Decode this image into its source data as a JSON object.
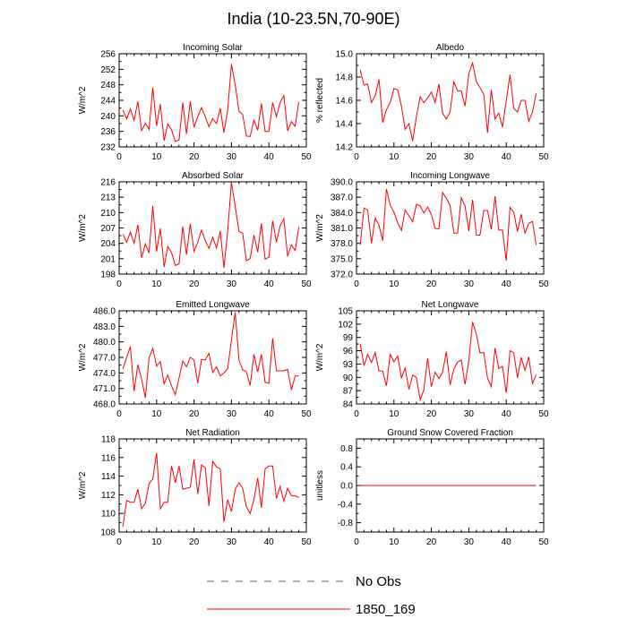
{
  "title": "India (10-23.5N,70-90E)",
  "colors": {
    "series": "#ff0000",
    "obs": "#5a5aa8",
    "axis": "#000000"
  },
  "legend": [
    {
      "label": "No Obs",
      "style": "dashed",
      "color": "#5a5aa8"
    },
    {
      "label": "1850_169",
      "style": "solid",
      "color": "#ff0000"
    }
  ],
  "chart_data": [
    {
      "type": "line",
      "title": "Incoming Solar",
      "ylabel": "W/m^2",
      "xlim": [
        0,
        50
      ],
      "xticks": [
        0,
        10,
        20,
        30,
        40,
        50
      ],
      "xtick_labels": [
        "0",
        "10",
        "20",
        "30",
        "40",
        "50"
      ],
      "ylim": [
        232,
        256
      ],
      "yticks": [
        232,
        236,
        240,
        244,
        248,
        252,
        256
      ],
      "ytick_labels": [
        "232",
        "236",
        "240",
        "244",
        "248",
        "252",
        "256"
      ],
      "series": [
        {
          "name": "1850_169",
          "x": [
            1,
            2,
            3,
            4,
            5,
            6,
            7,
            8,
            9,
            10,
            11,
            12,
            13,
            14,
            15,
            16,
            17,
            18,
            19,
            20,
            21,
            22,
            23,
            24,
            25,
            26,
            27,
            28,
            29,
            30,
            31,
            32,
            33,
            34,
            35,
            36,
            37,
            38,
            39,
            40,
            41,
            42,
            43,
            44,
            45,
            46,
            47,
            48
          ],
          "values": [
            241.5,
            239.2,
            241.8,
            238.8,
            243.7,
            236.2,
            238.1,
            236.5,
            247.2,
            237.4,
            243.0,
            233.6,
            237.9,
            236.4,
            233.4,
            233.8,
            243.4,
            235.4,
            243.7,
            237.1,
            239.8,
            242.1,
            239.8,
            237.2,
            239.3,
            238.0,
            242.0,
            235.7,
            241.5,
            253.3,
            248.0,
            241.2,
            240.3,
            234.8,
            234.7,
            238.9,
            236.3,
            243.2,
            236.0,
            236.0,
            243.4,
            239.8,
            243.4,
            245.2,
            236.1,
            238.5,
            237.3,
            243.6
          ]
        }
      ]
    },
    {
      "type": "line",
      "title": "Albedo",
      "ylabel": "% reflected",
      "xlim": [
        0,
        50
      ],
      "xticks": [
        0,
        10,
        20,
        30,
        40,
        50
      ],
      "xtick_labels": [
        "0",
        "10",
        "20",
        "30",
        "40",
        "50"
      ],
      "ylim": [
        14.2,
        15.0
      ],
      "yticks": [
        14.2,
        14.4,
        14.6,
        14.8,
        15.0
      ],
      "ytick_labels": [
        "14.2",
        "14.4",
        "14.6",
        "14.8",
        "15.0"
      ],
      "series": [
        {
          "name": "1850_169",
          "x": [
            1,
            2,
            3,
            4,
            5,
            6,
            7,
            8,
            9,
            10,
            11,
            12,
            13,
            14,
            15,
            16,
            17,
            18,
            19,
            20,
            21,
            22,
            23,
            24,
            25,
            26,
            27,
            28,
            29,
            30,
            31,
            32,
            33,
            34,
            35,
            36,
            37,
            38,
            39,
            40,
            41,
            42,
            43,
            44,
            45,
            46,
            47,
            48
          ],
          "values": [
            14.86,
            14.73,
            14.74,
            14.58,
            14.64,
            14.78,
            14.41,
            14.52,
            14.58,
            14.7,
            14.69,
            14.55,
            14.35,
            14.4,
            14.25,
            14.46,
            14.63,
            14.58,
            14.62,
            14.67,
            14.58,
            14.74,
            14.49,
            14.44,
            14.5,
            14.76,
            14.68,
            14.68,
            14.55,
            14.83,
            14.92,
            14.76,
            14.71,
            14.65,
            14.32,
            14.69,
            14.44,
            14.49,
            14.37,
            14.6,
            14.82,
            14.53,
            14.5,
            14.6,
            14.6,
            14.42,
            14.5,
            14.66
          ]
        }
      ]
    },
    {
      "type": "line",
      "title": "Absorbed Solar",
      "ylabel": "W/m^2",
      "xlim": [
        0,
        50
      ],
      "xticks": [
        0,
        10,
        20,
        30,
        40,
        50
      ],
      "xtick_labels": [
        "0",
        "10",
        "20",
        "30",
        "40",
        "50"
      ],
      "ylim": [
        198,
        216
      ],
      "yticks": [
        198,
        201,
        204,
        207,
        210,
        213,
        216
      ],
      "ytick_labels": [
        "198",
        "201",
        "204",
        "207",
        "210",
        "213",
        "216"
      ],
      "series": [
        {
          "name": "1850_169",
          "x": [
            1,
            2,
            3,
            4,
            5,
            6,
            7,
            8,
            9,
            10,
            11,
            12,
            13,
            14,
            15,
            16,
            17,
            18,
            19,
            20,
            21,
            22,
            23,
            24,
            25,
            26,
            27,
            28,
            29,
            30,
            31,
            32,
            33,
            34,
            35,
            36,
            37,
            38,
            39,
            40,
            41,
            42,
            43,
            44,
            45,
            46,
            47,
            48
          ],
          "values": [
            205.8,
            204.2,
            206.2,
            204.0,
            207.6,
            201.2,
            203.9,
            202.1,
            211.3,
            202.4,
            206.9,
            199.4,
            203.4,
            202.2,
            199.7,
            200.0,
            207.3,
            201.8,
            207.8,
            202.4,
            204.2,
            206.6,
            204.6,
            203.0,
            205.2,
            203.1,
            206.4,
            199.2,
            206.4,
            215.9,
            211.2,
            206.3,
            206.0,
            200.6,
            201.0,
            205.6,
            202.3,
            207.9,
            200.9,
            201.3,
            208.4,
            204.2,
            207.4,
            208.8,
            201.5,
            203.7,
            202.6,
            207.2
          ]
        }
      ]
    },
    {
      "type": "line",
      "title": "Incoming Longwave",
      "ylabel": "W/m^2",
      "xlim": [
        0,
        50
      ],
      "xticks": [
        0,
        10,
        20,
        30,
        40,
        50
      ],
      "xtick_labels": [
        "0",
        "10",
        "20",
        "30",
        "40",
        "50"
      ],
      "ylim": [
        372.0,
        390.0
      ],
      "yticks": [
        372.0,
        375.0,
        378.0,
        381.0,
        384.0,
        387.0,
        390.0
      ],
      "ytick_labels": [
        "372.0",
        "375.0",
        "378.0",
        "381.0",
        "384.0",
        "387.0",
        "390.0"
      ],
      "series": [
        {
          "name": "1850_169",
          "x": [
            1,
            2,
            3,
            4,
            5,
            6,
            7,
            8,
            9,
            10,
            11,
            12,
            13,
            14,
            15,
            16,
            17,
            18,
            19,
            20,
            21,
            22,
            23,
            24,
            25,
            26,
            27,
            28,
            29,
            30,
            31,
            32,
            33,
            34,
            35,
            36,
            37,
            38,
            39,
            40,
            41,
            42,
            43,
            44,
            45,
            46,
            47,
            48
          ],
          "values": [
            377.7,
            384.9,
            384.5,
            378.0,
            383.0,
            381.5,
            378.5,
            388.6,
            385.5,
            384.1,
            382.0,
            380.5,
            384.5,
            383.4,
            382.2,
            385.6,
            385.3,
            383.9,
            385.1,
            383.6,
            380.9,
            380.8,
            387.9,
            386.8,
            385.4,
            380.0,
            380.0,
            386.9,
            385.3,
            380.4,
            386.5,
            379.6,
            379.6,
            384.4,
            384.4,
            380.7,
            387.2,
            380.6,
            380.6,
            374.6,
            385.0,
            384.1,
            380.3,
            383.7,
            380.0,
            381.9,
            382.3,
            377.7
          ]
        }
      ]
    },
    {
      "type": "line",
      "title": "Emitted Longwave",
      "ylabel": "W/m^2",
      "xlim": [
        0,
        50
      ],
      "xticks": [
        0,
        10,
        20,
        30,
        40,
        50
      ],
      "xtick_labels": [
        "0",
        "10",
        "20",
        "30",
        "40",
        "50"
      ],
      "ylim": [
        468.0,
        486.0
      ],
      "yticks": [
        468.0,
        471.0,
        474.0,
        477.0,
        480.0,
        483.0,
        486.0
      ],
      "ytick_labels": [
        "468.0",
        "471.0",
        "474.0",
        "477.0",
        "480.0",
        "483.0",
        "486.0"
      ],
      "series": [
        {
          "name": "1850_169",
          "x": [
            1,
            2,
            3,
            4,
            5,
            6,
            7,
            8,
            9,
            10,
            11,
            12,
            13,
            14,
            15,
            16,
            17,
            18,
            19,
            20,
            21,
            22,
            23,
            24,
            25,
            26,
            27,
            28,
            29,
            30,
            31,
            32,
            33,
            34,
            35,
            36,
            37,
            38,
            39,
            40,
            41,
            42,
            43,
            44,
            45,
            46,
            47,
            48
          ],
          "values": [
            474.8,
            477.0,
            479.1,
            470.5,
            475.6,
            472.8,
            469.2,
            476.9,
            478.8,
            475.3,
            476.2,
            471.9,
            473.6,
            471.5,
            469.8,
            473.0,
            476.3,
            475.2,
            477.0,
            476.5,
            472.0,
            476.6,
            476.5,
            477.8,
            474.1,
            475.2,
            473.4,
            474.0,
            474.8,
            480.4,
            485.7,
            476.5,
            474.6,
            474.2,
            471.6,
            477.6,
            474.2,
            477.6,
            472.2,
            472.0,
            480.7,
            474.4,
            474.4,
            474.4,
            474.7,
            470.7,
            473.4,
            473.4
          ]
        }
      ]
    },
    {
      "type": "line",
      "title": "Net Longwave",
      "ylabel": "W/m^2",
      "xlim": [
        0,
        50
      ],
      "xticks": [
        0,
        10,
        20,
        30,
        40,
        50
      ],
      "xtick_labels": [
        "0",
        "10",
        "20",
        "30",
        "40",
        "50"
      ],
      "ylim": [
        84,
        105
      ],
      "yticks": [
        84,
        87,
        90,
        93,
        96,
        99,
        102,
        105
      ],
      "ytick_labels": [
        "84",
        "87",
        "90",
        "93",
        "96",
        "99",
        "102",
        "105"
      ],
      "series": [
        {
          "name": "1850_169",
          "x": [
            1,
            2,
            3,
            4,
            5,
            6,
            7,
            8,
            9,
            10,
            11,
            12,
            13,
            14,
            15,
            16,
            17,
            18,
            19,
            20,
            21,
            22,
            23,
            24,
            25,
            26,
            27,
            28,
            29,
            30,
            31,
            32,
            33,
            34,
            35,
            36,
            37,
            38,
            39,
            40,
            41,
            42,
            43,
            44,
            45,
            46,
            47,
            48
          ],
          "values": [
            97.5,
            92.6,
            95.2,
            93.3,
            95.6,
            91.5,
            91.4,
            88.1,
            95.2,
            93.5,
            94.8,
            89.9,
            92.1,
            87.3,
            90.5,
            90.0,
            84.9,
            87.2,
            94.3,
            87.9,
            91.2,
            89.7,
            91.1,
            95.8,
            88.3,
            91.9,
            93.5,
            93.9,
            88.4,
            93.7,
            102.5,
            99.7,
            95.5,
            95.6,
            89.8,
            87.9,
            96.6,
            92.0,
            92.5,
            86.5,
            96.0,
            95.5,
            89.9,
            94.5,
            91.6,
            94.6,
            88.6,
            90.6
          ]
        }
      ]
    },
    {
      "type": "line",
      "title": "Net Radiation",
      "ylabel": "W/m^2",
      "xlim": [
        0,
        50
      ],
      "xticks": [
        0,
        10,
        20,
        30,
        40,
        50
      ],
      "xtick_labels": [
        "0",
        "10",
        "20",
        "30",
        "40",
        "50"
      ],
      "ylim": [
        108,
        118
      ],
      "yticks": [
        108,
        110,
        112,
        114,
        116,
        118
      ],
      "ytick_labels": [
        "108",
        "110",
        "112",
        "114",
        "116",
        "118"
      ],
      "series": [
        {
          "name": "1850_169",
          "x": [
            1,
            2,
            3,
            4,
            5,
            6,
            7,
            8,
            9,
            10,
            11,
            12,
            13,
            14,
            15,
            16,
            17,
            18,
            19,
            20,
            21,
            22,
            23,
            24,
            25,
            26,
            27,
            28,
            29,
            30,
            31,
            32,
            33,
            34,
            35,
            36,
            37,
            38,
            39,
            40,
            41,
            42,
            43,
            44,
            45,
            46,
            47,
            48
          ],
          "values": [
            108.6,
            111.4,
            111.2,
            111.2,
            112.6,
            110.5,
            111.1,
            113.2,
            113.7,
            116.5,
            110.5,
            111.2,
            111.2,
            115.1,
            113.3,
            115.1,
            112.6,
            112.7,
            112.8,
            115.8,
            112.1,
            115.2,
            114.9,
            110.8,
            115.6,
            115.0,
            114.8,
            109.1,
            111.5,
            110.2,
            112.6,
            113.3,
            112.7,
            110.7,
            110.0,
            111.5,
            113.8,
            110.6,
            114.8,
            115.1,
            115.1,
            111.6,
            112.9,
            111.3,
            112.7,
            111.9,
            111.9,
            111.7
          ]
        }
      ]
    },
    {
      "type": "line",
      "title": "Ground Snow Covered Fraction",
      "ylabel": "unitless",
      "xlim": [
        0,
        50
      ],
      "xticks": [
        0,
        10,
        20,
        30,
        40,
        50
      ],
      "xtick_labels": [
        "0",
        "10",
        "20",
        "30",
        "40",
        "50"
      ],
      "ylim": [
        -1.0,
        1.0
      ],
      "yticks": [
        -0.8,
        -0.4,
        0.0,
        0.4,
        0.8
      ],
      "ytick_labels": [
        "-0.8",
        "-0.4",
        "0.0",
        "0.4",
        "0.8"
      ],
      "series": [
        {
          "name": "1850_169",
          "x": [
            1,
            48
          ],
          "values": [
            0.0,
            0.0
          ]
        }
      ]
    }
  ]
}
